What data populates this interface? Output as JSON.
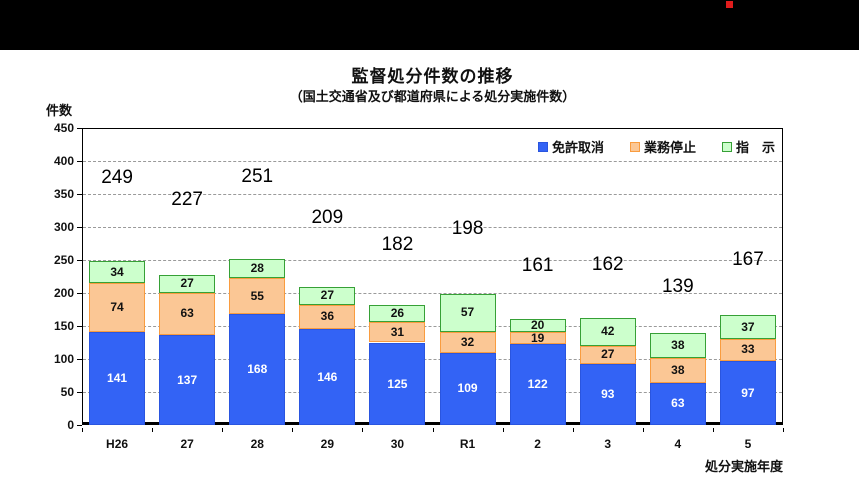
{
  "page": {
    "top_band_color": "#000000",
    "red_dot_color": "#e01c1c",
    "background_color": "#ffffff"
  },
  "chart_data": {
    "type": "bar",
    "stacked": true,
    "title": "監督処分件数の推移",
    "subtitle": "（国土交通省及び都道府県による処分実施件数）",
    "ylabel": "件数",
    "xlabel": "処分実施年度",
    "ylim": [
      0,
      450
    ],
    "ytick_step": 50,
    "yticks": [
      0,
      50,
      100,
      150,
      200,
      250,
      300,
      350,
      400,
      450
    ],
    "grid": "horizontal-dashed",
    "legend_position": "top-right-inside",
    "categories": [
      "H26",
      "27",
      "28",
      "29",
      "30",
      "R1",
      "2",
      "3",
      "4",
      "5"
    ],
    "series": [
      {
        "name": "免許取消",
        "fill": "#3363f5",
        "border": "#2a55df",
        "text_color": "#ffffff",
        "values": [
          141,
          137,
          168,
          146,
          125,
          109,
          122,
          93,
          63,
          97
        ]
      },
      {
        "name": "業務停止",
        "fill": "#fbc795",
        "border": "#f99c3f",
        "text_color": "#111111",
        "values": [
          74,
          63,
          55,
          36,
          31,
          32,
          19,
          27,
          38,
          33
        ]
      },
      {
        "name": "指　示",
        "fill": "#ccffcc",
        "border": "#36a036",
        "text_color": "#111111",
        "values": [
          34,
          27,
          28,
          27,
          26,
          57,
          20,
          42,
          38,
          37
        ]
      }
    ],
    "totals": [
      249,
      227,
      251,
      209,
      182,
      198,
      161,
      162,
      139,
      167
    ],
    "total_label_height_factor": 1.5
  }
}
